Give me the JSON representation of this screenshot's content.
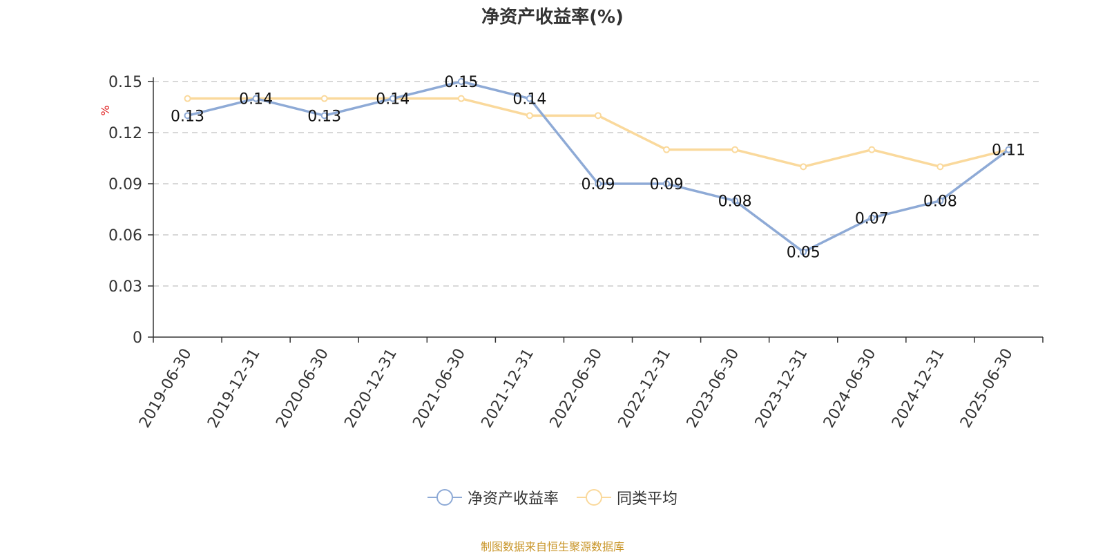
{
  "colors": {
    "series1": "#8eaad6",
    "series2": "#fad99c",
    "axis": "#333333",
    "grid": "#cccccc",
    "unit": "#e02020",
    "source": "#c9962a"
  },
  "legend_icons": [
    "circle-line-icon",
    "circle-line-icon"
  ],
  "chart_data": {
    "type": "line",
    "title": "净资产收益率(%)",
    "ylabel": "%",
    "ylim": [
      0,
      0.15
    ],
    "yticks": [
      "0",
      "0.03",
      "0.06",
      "0.09",
      "0.12",
      "0.15"
    ],
    "ytick_values": [
      0,
      0.03,
      0.06,
      0.09,
      0.12,
      0.15
    ],
    "grid": true,
    "legend_position": "bottom-center",
    "categories": [
      "2019-06-30",
      "2019-12-31",
      "2020-06-30",
      "2020-12-31",
      "2021-06-30",
      "2021-12-31",
      "2022-06-30",
      "2022-12-31",
      "2023-06-30",
      "2023-12-31",
      "2024-06-30",
      "2024-12-31",
      "2025-06-30"
    ],
    "series": [
      {
        "name": "净资产收益率",
        "values": [
          0.13,
          0.14,
          0.13,
          0.14,
          0.15,
          0.14,
          0.09,
          0.09,
          0.08,
          0.05,
          0.07,
          0.08,
          0.11
        ],
        "labels": [
          "0.13",
          "0.14",
          "0.13",
          "0.14",
          "0.15",
          "0.14",
          "0.09",
          "0.09",
          "0.08",
          "0.05",
          "0.07",
          "0.08",
          "0.11"
        ]
      },
      {
        "name": "同类平均",
        "values": [
          0.14,
          0.14,
          0.14,
          0.14,
          0.14,
          0.13,
          0.13,
          0.11,
          0.11,
          0.1,
          0.11,
          0.1,
          0.11
        ]
      }
    ],
    "source_note": "制图数据来自恒生聚源数据库"
  }
}
